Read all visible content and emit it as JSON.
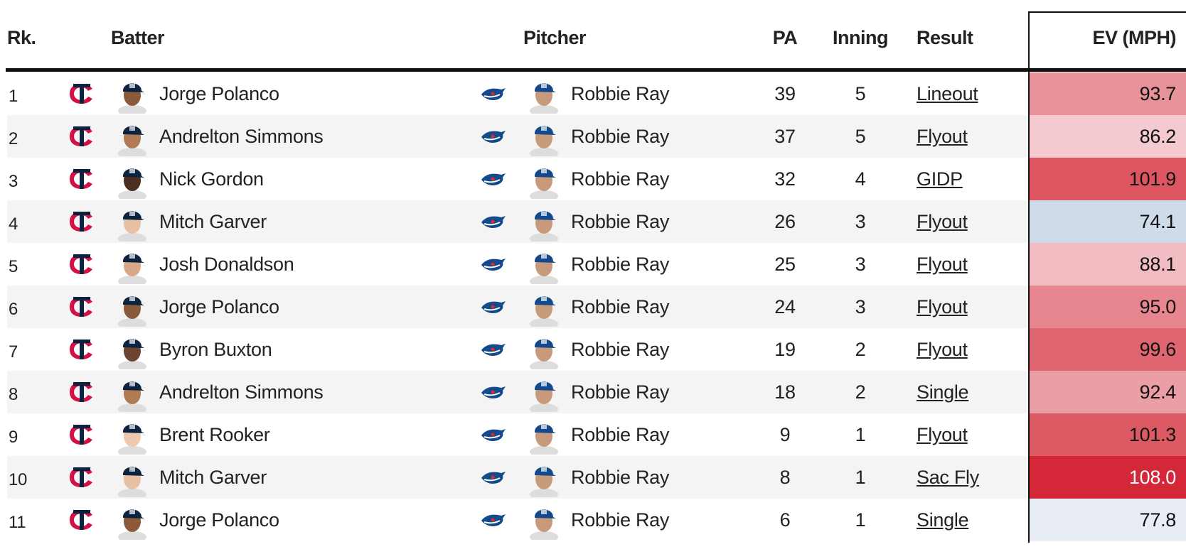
{
  "table": {
    "columns": [
      "Rk.",
      "Batter",
      "Pitcher",
      "PA",
      "Inning",
      "Result",
      "EV (MPH)"
    ],
    "rows": [
      [
        1,
        "Jorge Polanco",
        "Robbie Ray",
        39,
        5,
        "Lineout",
        "93.7"
      ],
      [
        2,
        "Andrelton Simmons",
        "Robbie Ray",
        37,
        5,
        "Flyout",
        "86.2"
      ],
      [
        3,
        "Nick Gordon",
        "Robbie Ray",
        32,
        4,
        "GIDP",
        "101.9"
      ],
      [
        4,
        "Mitch Garver",
        "Robbie Ray",
        26,
        3,
        "Flyout",
        "74.1"
      ],
      [
        5,
        "Josh Donaldson",
        "Robbie Ray",
        25,
        3,
        "Flyout",
        "88.1"
      ],
      [
        6,
        "Jorge Polanco",
        "Robbie Ray",
        24,
        3,
        "Flyout",
        "95.0"
      ],
      [
        7,
        "Byron Buxton",
        "Robbie Ray",
        19,
        2,
        "Flyout",
        "99.6"
      ],
      [
        8,
        "Andrelton Simmons",
        "Robbie Ray",
        18,
        2,
        "Single",
        "92.4"
      ],
      [
        9,
        "Brent Rooker",
        "Robbie Ray",
        9,
        1,
        "Flyout",
        "101.3"
      ],
      [
        10,
        "Mitch Garver",
        "Robbie Ray",
        8,
        1,
        "Sac Fly",
        "108.0"
      ],
      [
        11,
        "Jorge Polanco",
        "Robbie Ray",
        6,
        1,
        "Single",
        "77.8"
      ]
    ],
    "ev_colors": [
      "#e8939a",
      "#f4c9cf",
      "#dc5561",
      "#d0dbea",
      "#f1bcc2",
      "#e7868e",
      "#df6570",
      "#eb9ea5",
      "#dd5964",
      "#d42737",
      "#e8edf5"
    ]
  }
}
